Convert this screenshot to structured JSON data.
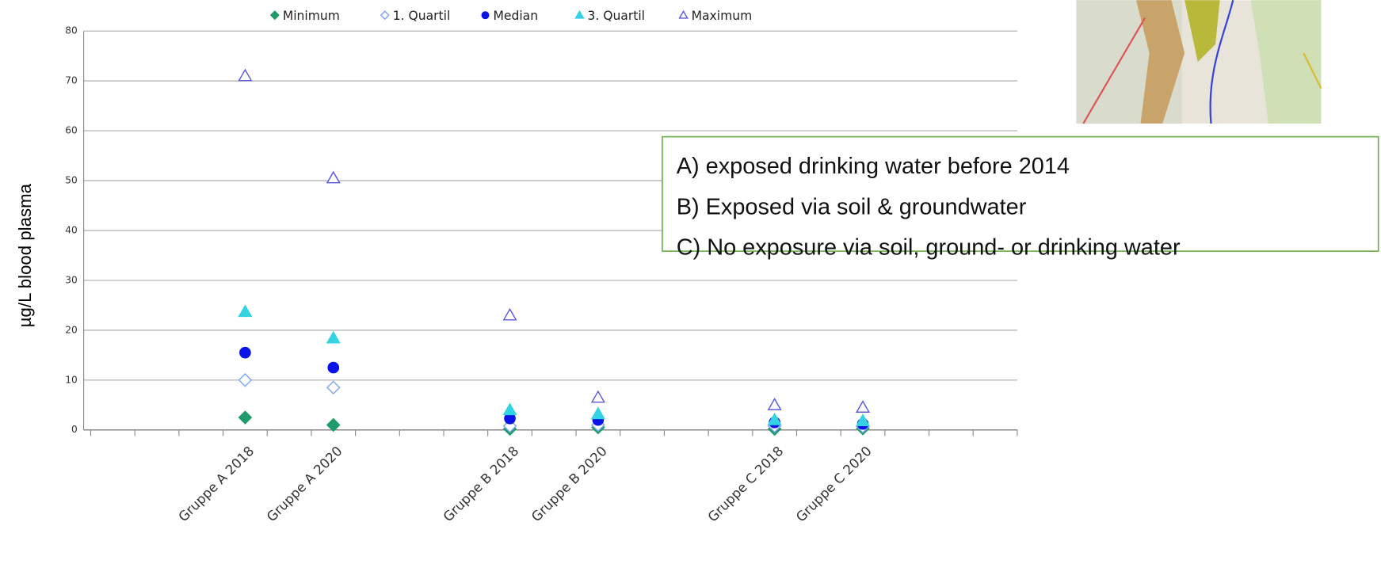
{
  "chart_data": {
    "type": "scatter",
    "y_label": "µg/L blood plasma",
    "categories": [
      null,
      null,
      null,
      "Gruppe A 2018",
      null,
      "Gruppe A 2020",
      null,
      null,
      null,
      "Gruppe B 2018",
      null,
      "Gruppe B 2020",
      null,
      null,
      null,
      "Gruppe C 2018",
      null,
      "Gruppe C 2020",
      null,
      null,
      null
    ],
    "series": [
      {
        "name": "Minimum",
        "color": "#1f9a6b",
        "marker": "diamond",
        "filled": true,
        "values": [
          null,
          null,
          null,
          2.5,
          null,
          1,
          null,
          null,
          null,
          0.2,
          null,
          0.5,
          null,
          null,
          null,
          0.2,
          null,
          0.3,
          null,
          null,
          null
        ]
      },
      {
        "name": "1. Quartil",
        "color": "#7fa6ee",
        "marker": "diamond",
        "filled": false,
        "values": [
          null,
          null,
          null,
          10,
          null,
          8.5,
          null,
          null,
          null,
          0.8,
          null,
          1,
          null,
          null,
          null,
          0.8,
          null,
          0.7,
          null,
          null,
          null
        ]
      },
      {
        "name": "Median",
        "color": "#0a14e6",
        "marker": "circle",
        "filled": true,
        "values": [
          null,
          null,
          null,
          15.5,
          null,
          12.5,
          null,
          null,
          null,
          2.3,
          null,
          2,
          null,
          null,
          null,
          1.5,
          null,
          1.2,
          null,
          null,
          null
        ]
      },
      {
        "name": "3. Quartil",
        "color": "#33d3e3",
        "marker": "triangle",
        "filled": true,
        "values": [
          null,
          null,
          null,
          23.7,
          null,
          18.4,
          null,
          null,
          null,
          4,
          null,
          3.2,
          null,
          null,
          null,
          2,
          null,
          1.8,
          null,
          null,
          null
        ]
      },
      {
        "name": "Maximum",
        "color": "#5a5ae0",
        "marker": "triangle",
        "filled": false,
        "values": [
          null,
          null,
          null,
          71,
          null,
          50.5,
          null,
          null,
          null,
          23,
          null,
          6.5,
          null,
          null,
          null,
          5,
          null,
          4.5,
          null,
          null,
          null
        ]
      }
    ],
    "ylim": [
      0,
      80
    ],
    "yticks": [
      0,
      10,
      20,
      30,
      40,
      50,
      60,
      70,
      80
    ],
    "grid": true,
    "legend": "top",
    "annotations": [
      "A) exposed drinking water before 2014",
      "B) Exposed via soil & groundwater",
      "C) No exposure via soil, ground- or drinking water"
    ]
  }
}
